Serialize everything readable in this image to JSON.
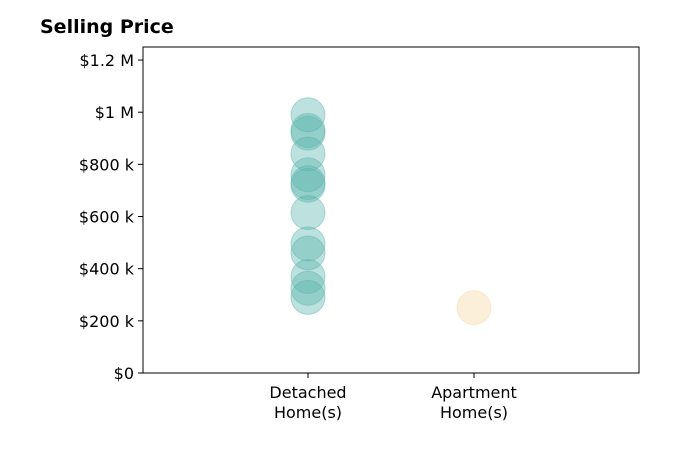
{
  "chart_data": {
    "type": "scatter",
    "title": "Selling Price",
    "categories": [
      "Detached\nHome(s)",
      "Apartment\nHome(s)"
    ],
    "y_tick_labels": [
      "$0",
      "$200 k",
      "$400 k",
      "$600 k",
      "$800 k",
      "$1 M",
      "$1.2 M"
    ],
    "ylim": [
      0,
      1250000
    ],
    "grid": false,
    "series": [
      {
        "category_index": 0,
        "color": "#5ab4ac",
        "values": [
          990000,
          930000,
          920000,
          840000,
          760000,
          730000,
          720000,
          615000,
          495000,
          460000,
          370000,
          325000,
          290000
        ]
      },
      {
        "category_index": 1,
        "color": "#f6d8a3",
        "values": [
          250000
        ]
      }
    ]
  }
}
